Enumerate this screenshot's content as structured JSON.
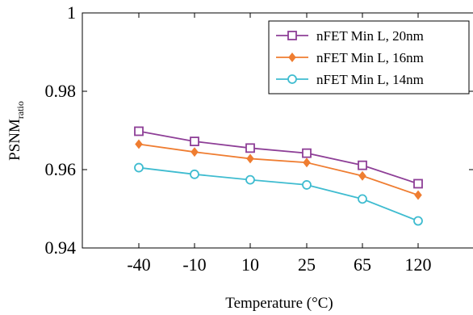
{
  "chart_data": {
    "type": "line",
    "title": "",
    "xlabel": "Temperature (°C)",
    "ylabel_main": "PSNM",
    "ylabel_sub": "ratio",
    "categories": [
      "-40",
      "-10",
      "10",
      "25",
      "65",
      "120"
    ],
    "ylim": [
      0.94,
      1.0
    ],
    "yticks": [
      0.94,
      0.96,
      0.98,
      1.0
    ],
    "ytick_labels": [
      "0.94",
      "0.96",
      "0.98",
      "1"
    ],
    "grid": false,
    "legend_position": "top-right",
    "series": [
      {
        "name": "nFET Min L, 20nm",
        "color": "#8e3f97",
        "marker": "square",
        "values": [
          0.9698,
          0.9672,
          0.9655,
          0.9642,
          0.9611,
          0.9564
        ]
      },
      {
        "name": "nFET Min L, 16nm",
        "color": "#ef7d31",
        "marker": "diamond",
        "values": [
          0.9665,
          0.9645,
          0.9628,
          0.9618,
          0.9584,
          0.9535
        ]
      },
      {
        "name": "nFET Min L, 14nm",
        "color": "#3fbcd0",
        "marker": "circle",
        "values": [
          0.9605,
          0.9588,
          0.9574,
          0.9561,
          0.9525,
          0.9469
        ]
      }
    ]
  }
}
